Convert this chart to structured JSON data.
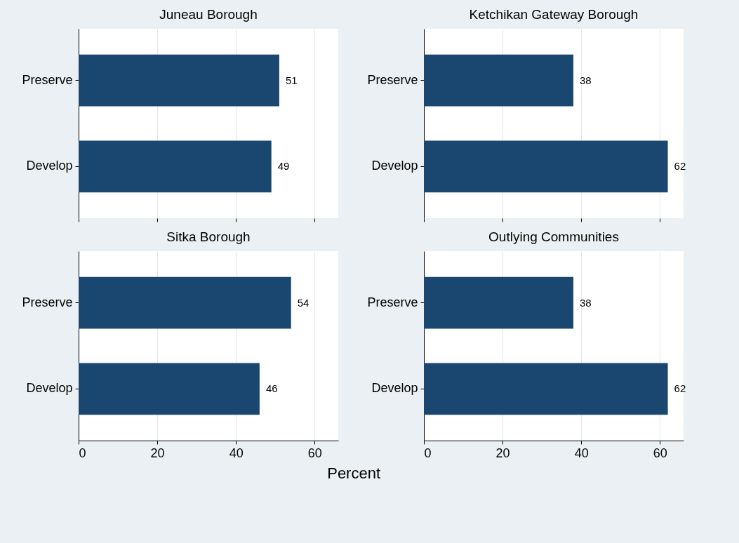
{
  "chart_data": [
    {
      "type": "bar",
      "orientation": "horizontal",
      "title": "Juneau Borough",
      "categories": [
        "Preserve",
        "Develop"
      ],
      "values": [
        51,
        49
      ],
      "color": "#1a476f",
      "xlim": [
        0,
        66
      ],
      "xticks": [
        0,
        20,
        40,
        60
      ],
      "grid": "x",
      "data_labels": true,
      "tick_labels": "y"
    },
    {
      "type": "bar",
      "orientation": "horizontal",
      "title": "Ketchikan Gateway Borough",
      "categories": [
        "Preserve",
        "Develop"
      ],
      "values": [
        38,
        62
      ],
      "color": "#1a476f",
      "xlim": [
        0,
        66
      ],
      "xticks": [
        0,
        20,
        40,
        60
      ],
      "grid": "x",
      "data_labels": true,
      "tick_labels": "y"
    },
    {
      "type": "bar",
      "orientation": "horizontal",
      "title": "Sitka Borough",
      "categories": [
        "Preserve",
        "Develop"
      ],
      "values": [
        54,
        46
      ],
      "color": "#1a476f",
      "xlim": [
        0,
        66
      ],
      "xticks": [
        0,
        20,
        40,
        60
      ],
      "grid": "x",
      "data_labels": true,
      "xlabel": "Percent"
    },
    {
      "type": "bar",
      "orientation": "horizontal",
      "title": "Outlying Communities",
      "categories": [
        "Preserve",
        "Develop"
      ],
      "values": [
        38,
        62
      ],
      "color": "#1a476f",
      "xlim": [
        0,
        66
      ],
      "xticks": [
        0,
        20,
        40,
        60
      ],
      "grid": "x",
      "data_labels": true
    }
  ]
}
